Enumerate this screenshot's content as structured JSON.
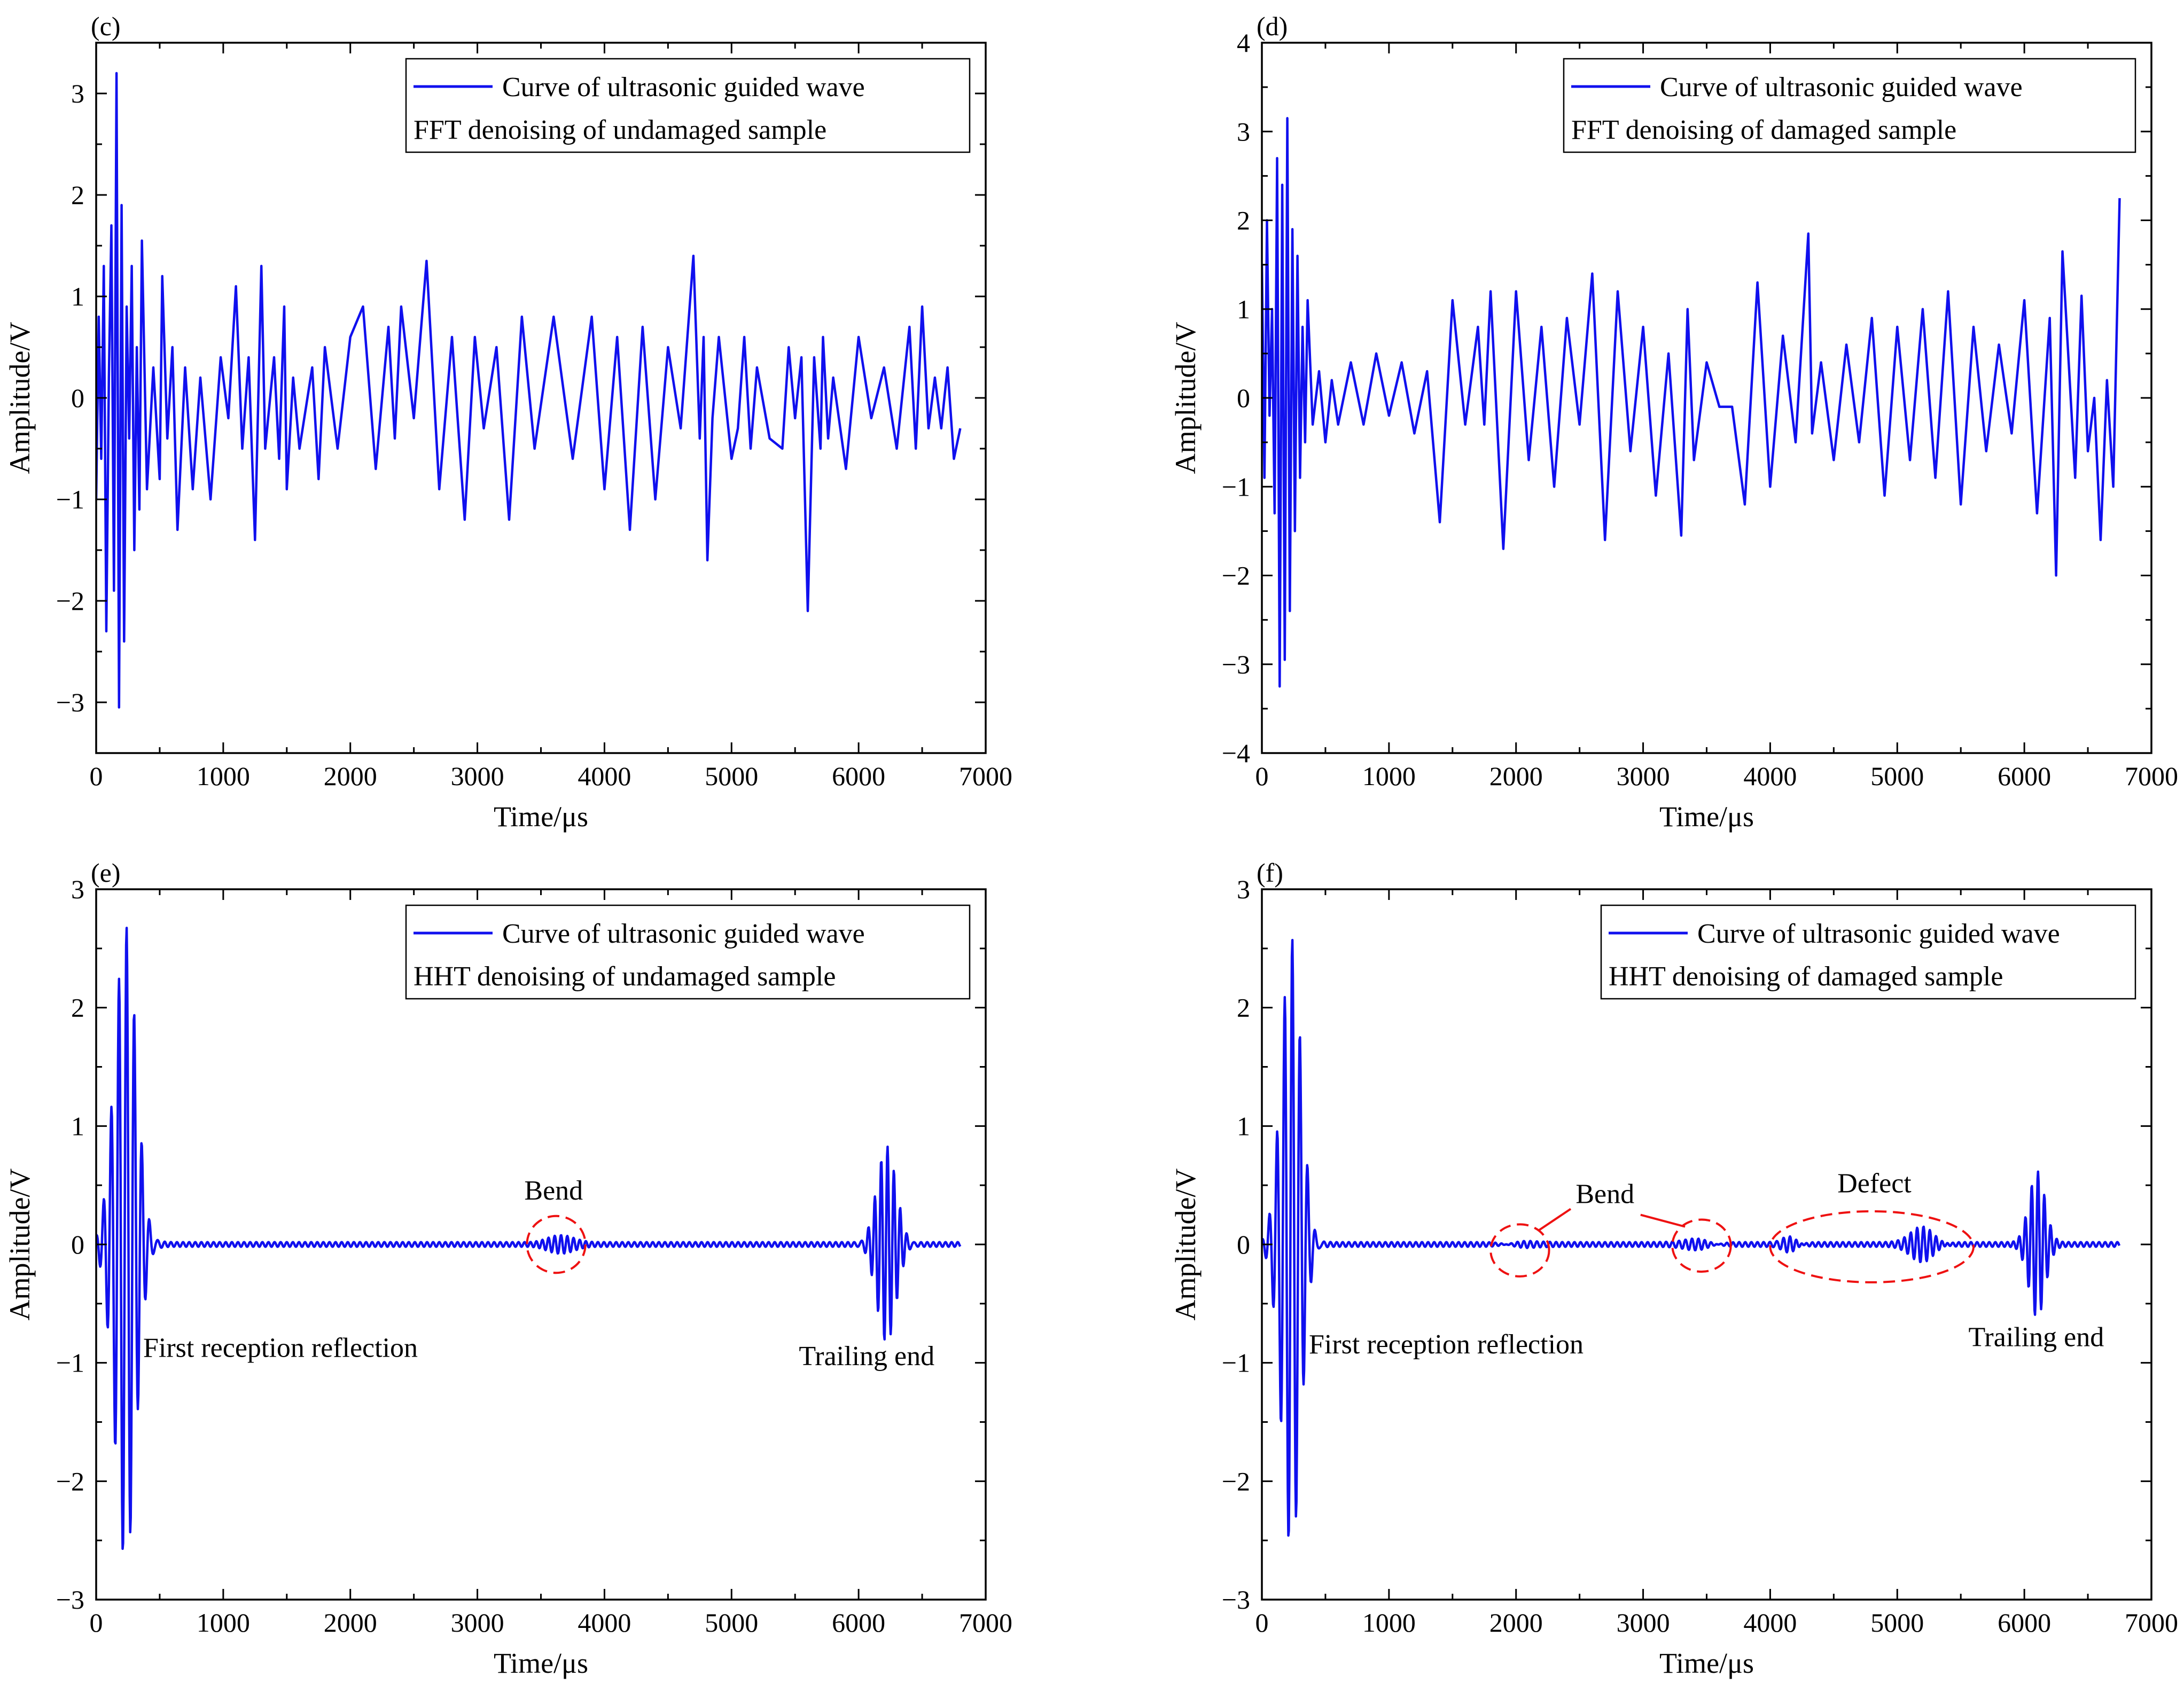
{
  "figure": {
    "panels_order": [
      "c",
      "d",
      "e",
      "f"
    ]
  },
  "chart_data": [
    {
      "id": "c",
      "type": "line",
      "panel_label": "(c)",
      "title": "",
      "xlabel": "Time/μs",
      "ylabel": "Amplitude/V",
      "xlim": [
        0,
        7000
      ],
      "ylim": [
        -3.5,
        3.5
      ],
      "xticks": [
        0,
        1000,
        2000,
        3000,
        4000,
        5000,
        6000,
        7000
      ],
      "yticks": [
        -3,
        -2,
        -1,
        0,
        1,
        2,
        3
      ],
      "tick_labels_x": [
        "0",
        "1000",
        "2000",
        "3000",
        "4000",
        "5000",
        "6000",
        "7000"
      ],
      "tick_labels_y": [
        "−3",
        "−2",
        "−1",
        "0",
        "1",
        "2",
        "3"
      ],
      "line_color": "#1010ee",
      "legend": {
        "position": "top-right",
        "series_label": "Curve of ultrasonic guided wave",
        "sub_label": "FFT denoising of undamaged sample"
      },
      "series": [
        {
          "name": "Curve of ultrasonic guided wave",
          "style": "noisy",
          "x": [
            0,
            20,
            40,
            60,
            80,
            100,
            120,
            140,
            160,
            180,
            200,
            220,
            240,
            260,
            280,
            300,
            320,
            340,
            360,
            400,
            450,
            500,
            520,
            560,
            600,
            640,
            700,
            760,
            820,
            900,
            980,
            1040,
            1100,
            1150,
            1200,
            1250,
            1300,
            1330,
            1400,
            1440,
            1480,
            1500,
            1550,
            1600,
            1700,
            1750,
            1800,
            1900,
            2000,
            2100,
            2200,
            2300,
            2350,
            2400,
            2500,
            2600,
            2700,
            2800,
            2900,
            2980,
            3050,
            3150,
            3250,
            3350,
            3450,
            3600,
            3750,
            3900,
            4000,
            4100,
            4200,
            4300,
            4400,
            4500,
            4600,
            4700,
            4750,
            4780,
            4810,
            4850,
            4900,
            5000,
            5050,
            5100,
            5150,
            5200,
            5300,
            5400,
            5450,
            5500,
            5550,
            5600,
            5650,
            5700,
            5720,
            5760,
            5800,
            5900,
            6000,
            6100,
            6200,
            6300,
            6400,
            6450,
            6500,
            6550,
            6600,
            6650,
            6700,
            6750,
            6800
          ],
          "y": [
            -1.0,
            0.8,
            -0.6,
            1.3,
            -2.3,
            0.2,
            1.7,
            -1.9,
            3.2,
            -3.05,
            1.9,
            -2.4,
            0.9,
            -0.4,
            1.3,
            -1.5,
            0.5,
            -1.1,
            1.55,
            -0.9,
            0.3,
            -0.8,
            1.2,
            -0.4,
            0.5,
            -1.3,
            0.3,
            -0.9,
            0.2,
            -1.0,
            0.4,
            -0.2,
            1.1,
            -0.5,
            0.4,
            -1.4,
            1.3,
            -0.5,
            0.4,
            -0.6,
            0.9,
            -0.9,
            0.2,
            -0.5,
            0.3,
            -0.8,
            0.5,
            -0.5,
            0.6,
            0.9,
            -0.7,
            0.7,
            -0.4,
            0.9,
            -0.2,
            1.35,
            -0.9,
            0.6,
            -1.2,
            0.6,
            -0.3,
            0.5,
            -1.2,
            0.8,
            -0.5,
            0.8,
            -0.6,
            0.8,
            -0.9,
            0.6,
            -1.3,
            0.7,
            -1.0,
            0.5,
            -0.3,
            1.4,
            -0.4,
            0.6,
            -1.6,
            -0.2,
            0.6,
            -0.6,
            -0.3,
            0.6,
            -0.5,
            0.3,
            -0.4,
            -0.5,
            0.5,
            -0.2,
            0.4,
            -2.1,
            0.4,
            -0.5,
            0.6,
            -0.4,
            0.2,
            -0.7,
            0.6,
            -0.2,
            0.3,
            -0.5,
            0.7,
            -0.5,
            0.9,
            -0.3,
            0.2,
            -0.3,
            0.3,
            -0.6,
            -0.3
          ]
        }
      ],
      "annotations": []
    },
    {
      "id": "d",
      "type": "line",
      "panel_label": "(d)",
      "title": "",
      "xlabel": "Time/μs",
      "ylabel": "Amplitude/V",
      "xlim": [
        0,
        7000
      ],
      "ylim": [
        -4,
        4
      ],
      "xticks": [
        0,
        1000,
        2000,
        3000,
        4000,
        5000,
        6000,
        7000
      ],
      "yticks": [
        -4,
        -3,
        -2,
        -1,
        0,
        1,
        2,
        3,
        4
      ],
      "tick_labels_x": [
        "0",
        "1000",
        "2000",
        "3000",
        "4000",
        "5000",
        "6000",
        "7000"
      ],
      "tick_labels_y": [
        "−4",
        "−3",
        "−2",
        "−1",
        "0",
        "1",
        "2",
        "3",
        "4"
      ],
      "line_color": "#1010ee",
      "legend": {
        "position": "top-right",
        "series_label": "Curve of ultrasonic guided wave",
        "sub_label": "FFT denoising of damaged sample"
      },
      "series": [
        {
          "name": "Curve of ultrasonic guided wave",
          "style": "noisy",
          "x": [
            0,
            20,
            40,
            60,
            80,
            100,
            120,
            140,
            160,
            180,
            200,
            220,
            240,
            260,
            280,
            300,
            320,
            340,
            360,
            400,
            450,
            500,
            550,
            600,
            700,
            800,
            900,
            1000,
            1100,
            1200,
            1300,
            1400,
            1500,
            1600,
            1700,
            1750,
            1800,
            1900,
            2000,
            2100,
            2200,
            2300,
            2400,
            2500,
            2600,
            2700,
            2800,
            2900,
            3000,
            3100,
            3200,
            3300,
            3350,
            3400,
            3500,
            3600,
            3700,
            3800,
            3900,
            4000,
            4100,
            4200,
            4300,
            4330,
            4400,
            4500,
            4600,
            4700,
            4800,
            4900,
            5000,
            5100,
            5200,
            5300,
            5400,
            5500,
            5600,
            5700,
            5800,
            5900,
            6000,
            6100,
            6200,
            6250,
            6300,
            6400,
            6450,
            6500,
            6550,
            6600,
            6650,
            6700,
            6750
          ],
          "y": [
            1.5,
            -0.9,
            2.0,
            -0.2,
            1.0,
            -1.3,
            2.7,
            -3.25,
            2.4,
            -2.95,
            3.15,
            -2.4,
            1.9,
            -1.5,
            1.6,
            -0.9,
            0.8,
            -0.5,
            1.1,
            -0.3,
            0.3,
            -0.5,
            0.2,
            -0.3,
            0.4,
            -0.3,
            0.5,
            -0.2,
            0.4,
            -0.4,
            0.3,
            -1.4,
            1.1,
            -0.3,
            0.8,
            -0.3,
            1.2,
            -1.7,
            1.2,
            -0.7,
            0.8,
            -1.0,
            0.9,
            -0.3,
            1.4,
            -1.6,
            1.2,
            -0.6,
            0.8,
            -1.1,
            0.5,
            -1.55,
            1.0,
            -0.7,
            0.4,
            -0.1,
            -0.1,
            -1.2,
            1.3,
            -1.0,
            0.7,
            -0.5,
            1.85,
            -0.4,
            0.4,
            -0.7,
            0.6,
            -0.5,
            0.9,
            -1.1,
            0.8,
            -0.7,
            1.0,
            -0.9,
            1.2,
            -1.2,
            0.8,
            -0.6,
            0.6,
            -0.4,
            1.1,
            -1.3,
            0.9,
            -2.0,
            1.65,
            -0.9,
            1.15,
            -0.6,
            0.0,
            -1.6,
            0.2,
            -1.0,
            2.25
          ]
        }
      ],
      "annotations": []
    },
    {
      "id": "e",
      "type": "line",
      "panel_label": "(e)",
      "title": "",
      "xlabel": "Time/μs",
      "ylabel": "Amplitude/V",
      "xlim": [
        0,
        7000
      ],
      "ylim": [
        -3,
        3
      ],
      "xticks": [
        0,
        1000,
        2000,
        3000,
        4000,
        5000,
        6000,
        7000
      ],
      "yticks": [
        -3,
        -2,
        -1,
        0,
        1,
        2,
        3
      ],
      "tick_labels_x": [
        "0",
        "1000",
        "2000",
        "3000",
        "4000",
        "5000",
        "6000",
        "7000"
      ],
      "tick_labels_y": [
        "−3",
        "−2",
        "−1",
        "0",
        "1",
        "2",
        "3"
      ],
      "line_color": "#1010ee",
      "legend": {
        "position": "top-right",
        "series_label": "Curve of ultrasonic guided wave",
        "sub_label": "HHT denoising of undamaged sample"
      },
      "series": [
        {
          "name": "Curve of ultrasonic guided wave",
          "style": "packets",
          "x_range": [
            0,
            6800
          ],
          "baseline_amplitude": 0.02,
          "packets": [
            {
              "center": 230,
              "width": 120,
              "amplitude": 2.7,
              "period": 60
            },
            {
              "center": 3650,
              "width": 150,
              "amplitude": 0.06,
              "period": 50
            },
            {
              "center": 6220,
              "width": 110,
              "amplitude": 0.85,
              "period": 50
            }
          ]
        }
      ],
      "annotations": [
        {
          "text": "Bend",
          "x": 3600,
          "y": 0.38,
          "type": "label"
        },
        {
          "text": "First reception reflection",
          "x": 370,
          "y": -0.95,
          "type": "label",
          "anchor": "start"
        },
        {
          "text": "Trailing end",
          "x": 5530,
          "y": -1.02,
          "type": "label",
          "anchor": "start"
        },
        {
          "type": "ellipse",
          "cx": 3620,
          "cy": 0.0,
          "rx": 230,
          "ry": 0.24
        }
      ]
    },
    {
      "id": "f",
      "type": "line",
      "panel_label": "(f)",
      "title": "",
      "xlabel": "Time/μs",
      "ylabel": "Amplitude/V",
      "xlim": [
        0,
        7000
      ],
      "ylim": [
        -3,
        3
      ],
      "xticks": [
        0,
        1000,
        2000,
        3000,
        4000,
        5000,
        6000,
        7000
      ],
      "yticks": [
        -3,
        -2,
        -1,
        0,
        1,
        2,
        3
      ],
      "tick_labels_x": [
        "0",
        "1000",
        "2000",
        "3000",
        "4000",
        "5000",
        "6000",
        "7000"
      ],
      "tick_labels_y": [
        "−3",
        "−2",
        "−1",
        "0",
        "1",
        "2",
        "3"
      ],
      "line_color": "#1010ee",
      "legend": {
        "position": "top-right",
        "series_label": "Curve of ultrasonic guided wave",
        "sub_label": "HHT denoising of damaged sample"
      },
      "series": [
        {
          "name": "Curve of ultrasonic guided wave",
          "style": "packets",
          "x_range": [
            0,
            6750
          ],
          "baseline_amplitude": 0.02,
          "packets": [
            {
              "center": 230,
              "width": 110,
              "amplitude": 2.6,
              "period": 60
            },
            {
              "center": 2050,
              "width": 150,
              "amplitude": 0.04,
              "period": 50
            },
            {
              "center": 3430,
              "width": 150,
              "amplitude": 0.06,
              "period": 50
            },
            {
              "center": 4150,
              "width": 90,
              "amplitude": 0.08,
              "period": 50
            },
            {
              "center": 5200,
              "width": 130,
              "amplitude": 0.15,
              "period": 50
            },
            {
              "center": 6100,
              "width": 90,
              "amplitude": 0.6,
              "period": 50
            }
          ]
        }
      ],
      "annotations": [
        {
          "text": "Bend",
          "x": 2700,
          "y": 0.35,
          "type": "label"
        },
        {
          "text": "Defect",
          "x": 4820,
          "y": 0.44,
          "type": "label"
        },
        {
          "text": "First reception reflection",
          "x": 370,
          "y": -0.92,
          "type": "label",
          "anchor": "start"
        },
        {
          "text": "Trailing end",
          "x": 5560,
          "y": -0.86,
          "type": "label",
          "anchor": "start"
        },
        {
          "type": "ellipse",
          "cx": 2030,
          "cy": -0.05,
          "rx": 230,
          "ry": 0.22
        },
        {
          "type": "ellipse",
          "cx": 3460,
          "cy": -0.01,
          "rx": 230,
          "ry": 0.22
        },
        {
          "type": "ellipse",
          "cx": 4800,
          "cy": -0.02,
          "rx": 800,
          "ry": 0.3
        },
        {
          "type": "connector",
          "x1": 2180,
          "y1": 0.12,
          "x2": 2430,
          "y2": 0.3
        },
        {
          "type": "connector",
          "x1": 2980,
          "y1": 0.25,
          "x2": 3330,
          "y2": 0.15
        }
      ]
    }
  ]
}
